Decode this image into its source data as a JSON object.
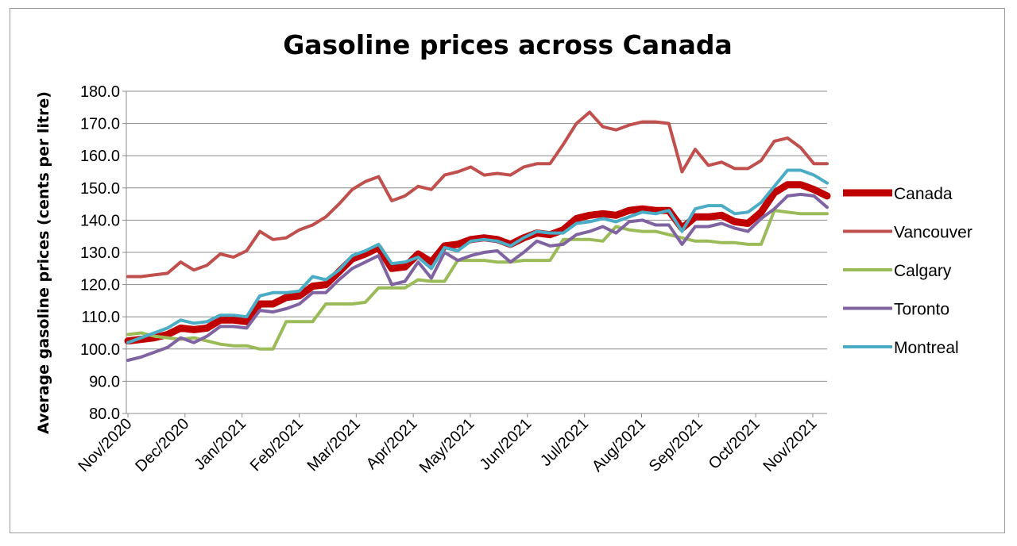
{
  "chart_data": {
    "type": "line",
    "title": "Gasoline prices across Canada",
    "ylabel": "Average gasoline prices (cents per litre)",
    "xlabel": "",
    "ylim": [
      80,
      180
    ],
    "yticks": [
      "80.0",
      "90.0",
      "100.0",
      "110.0",
      "120.0",
      "130.0",
      "140.0",
      "150.0",
      "160.0",
      "170.0",
      "180.0"
    ],
    "xtick_labels": [
      "Nov/2020",
      "Dec/2020",
      "Jan/2021",
      "Feb/2021",
      "Mar/2021",
      "Apr/2021",
      "May/2021",
      "Jun/2021",
      "Jul/2021",
      "Aug/2021",
      "Sep/2021",
      "Oct/2021",
      "Nov/2021"
    ],
    "grid": true,
    "legend_position": "right",
    "series": [
      {
        "name": "Canada",
        "color": "#c00000",
        "values": [
          102.5,
          103.0,
          103.5,
          104.5,
          106.5,
          106.0,
          106.5,
          109.0,
          109.0,
          108.5,
          114.0,
          114.0,
          116.0,
          116.5,
          119.5,
          120.0,
          124.0,
          128.0,
          129.5,
          131.5,
          125.0,
          125.5,
          129.5,
          127.0,
          132.0,
          132.5,
          134.0,
          134.5,
          134.0,
          132.5,
          134.5,
          136.0,
          135.5,
          137.0,
          140.5,
          141.5,
          142.0,
          141.5,
          143.0,
          143.5,
          143.0,
          143.0,
          137.5,
          141.0,
          141.0,
          141.5,
          139.5,
          139.0,
          142.5,
          148.5,
          151.0,
          151.0,
          149.5,
          147.5
        ]
      },
      {
        "name": "Vancouver",
        "color": "#c0504d",
        "values": [
          122.5,
          122.5,
          123.0,
          123.5,
          127.0,
          124.5,
          126.0,
          129.5,
          128.5,
          130.5,
          136.5,
          134.0,
          134.5,
          137.0,
          138.5,
          141.0,
          145.0,
          149.5,
          152.0,
          153.5,
          146.0,
          147.5,
          150.5,
          149.5,
          154.0,
          155.0,
          156.5,
          154.0,
          154.5,
          154.0,
          156.5,
          157.5,
          157.5,
          163.5,
          170.0,
          173.5,
          169.0,
          168.0,
          169.5,
          170.5,
          170.5,
          170.0,
          155.0,
          162.0,
          157.0,
          158.0,
          156.0,
          156.0,
          158.5,
          164.5,
          165.5,
          162.5,
          157.5,
          157.5
        ]
      },
      {
        "name": "Calgary",
        "color": "#9bbb59",
        "values": [
          104.5,
          105.0,
          104.0,
          103.5,
          103.0,
          103.5,
          102.5,
          101.5,
          101.0,
          101.0,
          100.0,
          100.0,
          108.5,
          108.5,
          108.5,
          114.0,
          114.0,
          114.0,
          114.5,
          119.0,
          119.0,
          119.0,
          121.5,
          121.0,
          121.0,
          127.5,
          127.5,
          127.5,
          127.0,
          127.0,
          127.5,
          127.5,
          127.5,
          134.0,
          134.0,
          134.0,
          133.5,
          138.0,
          137.0,
          136.5,
          136.5,
          135.5,
          134.5,
          133.5,
          133.5,
          133.0,
          133.0,
          132.5,
          132.5,
          143.0,
          142.5,
          142.0,
          142.0,
          142.0
        ]
      },
      {
        "name": "Toronto",
        "color": "#8064a2",
        "values": [
          96.5,
          97.5,
          99.0,
          100.5,
          103.5,
          102.0,
          104.0,
          107.0,
          107.0,
          106.5,
          112.0,
          111.5,
          112.5,
          114.0,
          117.5,
          117.5,
          121.5,
          125.0,
          127.0,
          129.0,
          120.0,
          121.0,
          127.0,
          122.0,
          130.0,
          127.5,
          129.0,
          130.0,
          130.5,
          127.0,
          130.0,
          133.5,
          132.0,
          132.5,
          135.5,
          136.5,
          138.0,
          136.0,
          139.5,
          140.0,
          138.5,
          138.5,
          132.5,
          138.0,
          138.0,
          139.0,
          137.5,
          136.5,
          140.5,
          143.5,
          147.5,
          148.0,
          147.5,
          144.0
        ]
      },
      {
        "name": "Montreal",
        "color": "#4bacc6",
        "values": [
          102.0,
          103.5,
          105.0,
          106.5,
          109.0,
          108.0,
          108.5,
          110.5,
          110.5,
          110.0,
          116.5,
          117.5,
          117.5,
          118.0,
          122.5,
          121.5,
          124.5,
          129.0,
          130.5,
          132.5,
          126.5,
          127.0,
          128.5,
          125.0,
          131.5,
          130.5,
          133.5,
          134.0,
          133.5,
          132.0,
          134.5,
          136.5,
          136.0,
          136.0,
          139.0,
          139.5,
          140.5,
          139.5,
          141.0,
          142.5,
          142.0,
          143.0,
          136.5,
          143.5,
          144.5,
          144.5,
          142.0,
          142.5,
          145.5,
          150.5,
          155.5,
          155.5,
          154.0,
          151.5
        ]
      }
    ]
  }
}
